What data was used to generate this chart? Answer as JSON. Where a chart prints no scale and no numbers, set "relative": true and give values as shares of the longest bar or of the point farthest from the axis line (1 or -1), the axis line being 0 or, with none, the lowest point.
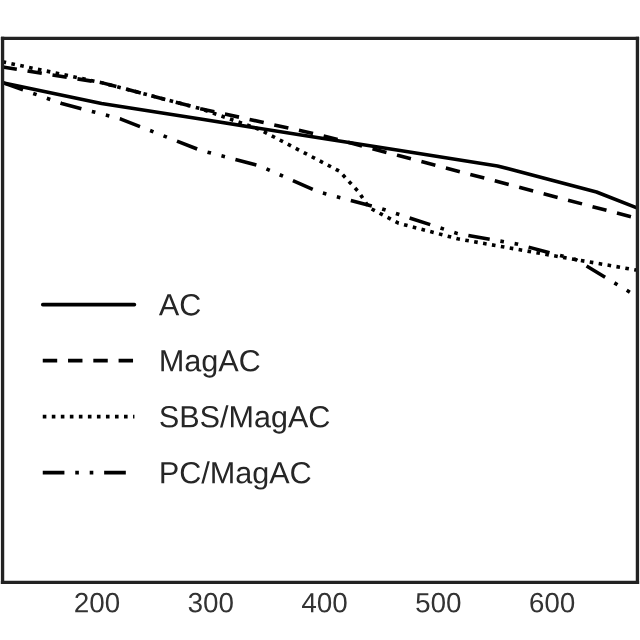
{
  "chart_data": {
    "type": "line",
    "relative": true,
    "xlim": [
      117,
      675
    ],
    "xticks": [
      200,
      300,
      400,
      500,
      600
    ],
    "grid": false,
    "legend": "lower left",
    "marker": "none",
    "series": [
      {
        "name": "AC",
        "color": "#000000",
        "line_style": "solid",
        "x": [
          117,
          204,
          291,
          378,
          465,
          552,
          604,
          639,
          674
        ],
        "values": [
          0.96,
          0.92,
          0.89,
          0.86,
          0.83,
          0.8,
          0.77,
          0.75,
          0.72
        ]
      },
      {
        "name": "MagAC",
        "color": "#000000",
        "line_style": "dashed",
        "x": [
          117,
          204,
          291,
          395,
          465,
          552,
          604,
          656,
          674
        ],
        "values": [
          0.99,
          0.96,
          0.91,
          0.86,
          0.82,
          0.77,
          0.74,
          0.71,
          0.7
        ]
      },
      {
        "name": "SBS/MagAC",
        "color": "#000000",
        "line_style": "dotted",
        "x": [
          117,
          204,
          291,
          343,
          378,
          413,
          430,
          439,
          465,
          517,
          569,
          621,
          674
        ],
        "values": [
          1.0,
          0.96,
          0.91,
          0.87,
          0.83,
          0.79,
          0.75,
          0.72,
          0.69,
          0.66,
          0.64,
          0.62,
          0.6
        ]
      },
      {
        "name": "PC/MagAC",
        "color": "#000000",
        "line_style": "dashdot",
        "x": [
          117,
          169,
          221,
          291,
          343,
          395,
          447,
          517,
          569,
          621,
          674
        ],
        "values": [
          0.96,
          0.92,
          0.89,
          0.83,
          0.8,
          0.75,
          0.72,
          0.67,
          0.65,
          0.62,
          0.55
        ]
      }
    ]
  }
}
